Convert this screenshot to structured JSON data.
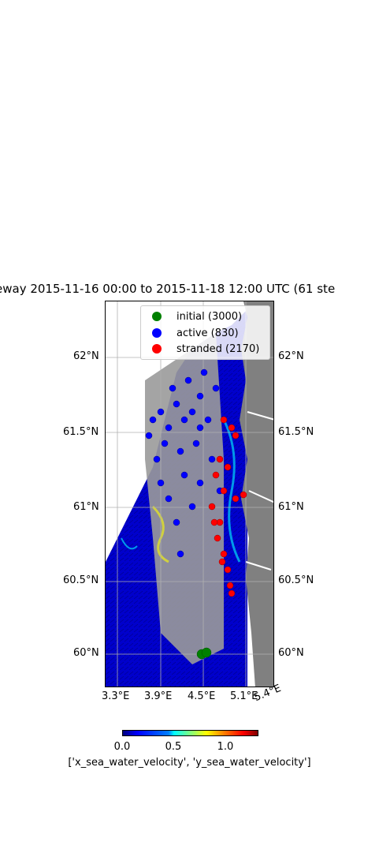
{
  "title": "eway  2015-11-16 00:00 to 2015-11-18 12:00 UTC (61 ste",
  "map": {
    "x_ticks": [
      "3.3°E",
      "3.9°E",
      "4.5°E",
      "5.1°E",
      "5.4°E"
    ],
    "y_ticks": [
      "62°N",
      "61.5°N",
      "61°N",
      "60.5°N",
      "60°N"
    ],
    "colors": {
      "ocean_field": "#0000cc",
      "land": "#808080",
      "initial": "#008000",
      "active": "#0000ff",
      "stranded": "#ff0000"
    }
  },
  "legend": {
    "items": [
      {
        "label": "initial (3000)",
        "color": "#008000"
      },
      {
        "label": "active (830)",
        "color": "#0000ff"
      },
      {
        "label": "stranded (2170)",
        "color": "#ff0000"
      }
    ]
  },
  "colorbar": {
    "ticks": [
      "0.0",
      "0.5",
      "1.0"
    ],
    "label": "['x_sea_water_velocity', 'y_sea_water_velocity']",
    "range": [
      0.0,
      1.3
    ]
  }
}
